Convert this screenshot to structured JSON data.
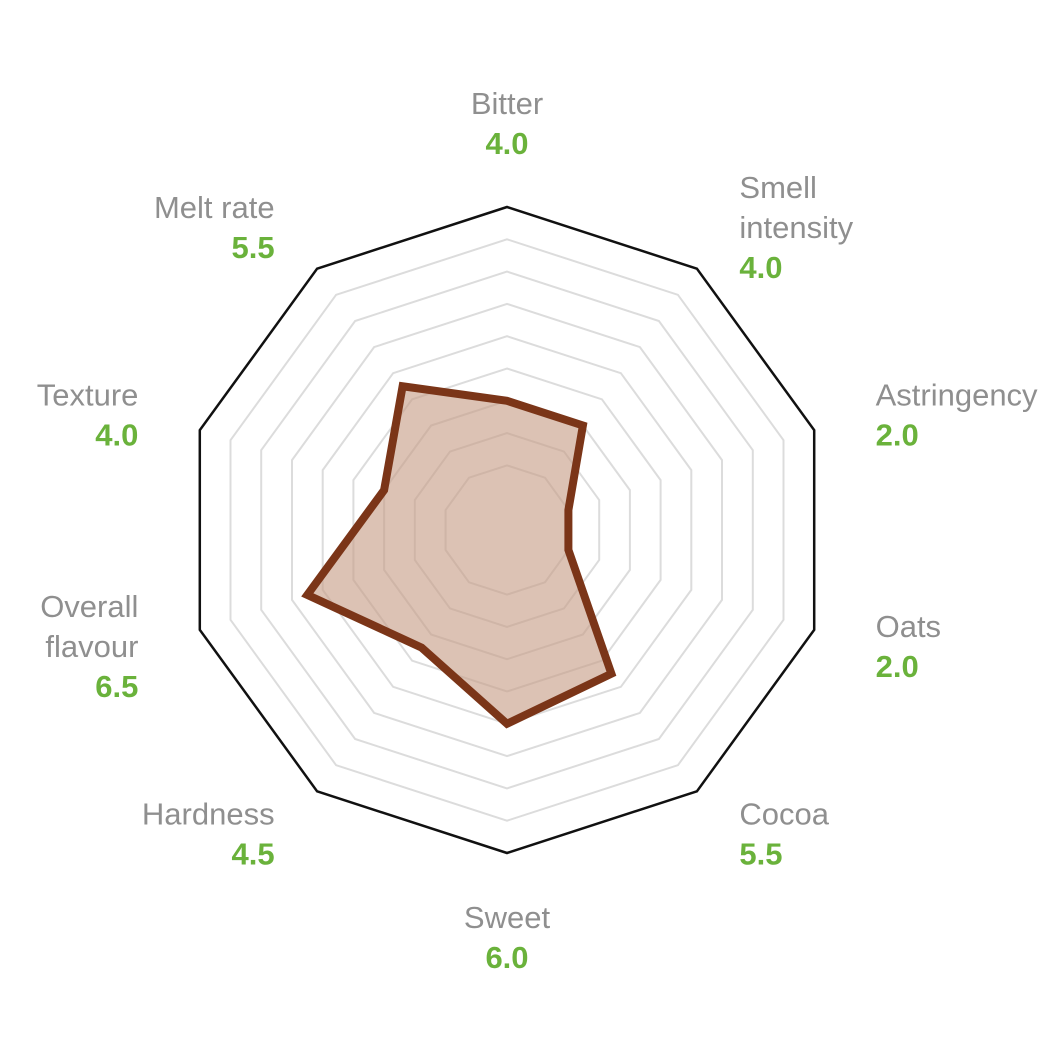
{
  "colors": {
    "series_stroke": "#7b3518",
    "series_fill": "#c79c86",
    "frame": "#111111",
    "grid": "#dcdcdc",
    "label_text": "#8f8f8f",
    "value_text": "#6ab23b"
  },
  "chart_data": {
    "type": "radar",
    "title": "",
    "range": [
      0,
      10
    ],
    "grid_levels": [
      2,
      3,
      4,
      5,
      6,
      7,
      8,
      9
    ],
    "axes": [
      {
        "lines": [
          "Bitter"
        ],
        "value_label": "4.0"
      },
      {
        "lines": [
          "Smell",
          "intensity"
        ],
        "value_label": "4.0"
      },
      {
        "lines": [
          "Astringency"
        ],
        "value_label": "2.0"
      },
      {
        "lines": [
          "Oats"
        ],
        "value_label": "2.0"
      },
      {
        "lines": [
          "Cocoa"
        ],
        "value_label": "5.5"
      },
      {
        "lines": [
          "Sweet"
        ],
        "value_label": "6.0"
      },
      {
        "lines": [
          "Hardness"
        ],
        "value_label": "4.5"
      },
      {
        "lines": [
          "Overall",
          "flavour"
        ],
        "value_label": "6.5"
      },
      {
        "lines": [
          "Texture"
        ],
        "value_label": "4.0"
      },
      {
        "lines": [
          "Melt rate"
        ],
        "value_label": "5.5"
      }
    ],
    "values": [
      4.0,
      4.0,
      2.0,
      2.0,
      5.5,
      6.0,
      4.5,
      6.5,
      4.0,
      5.5
    ]
  }
}
